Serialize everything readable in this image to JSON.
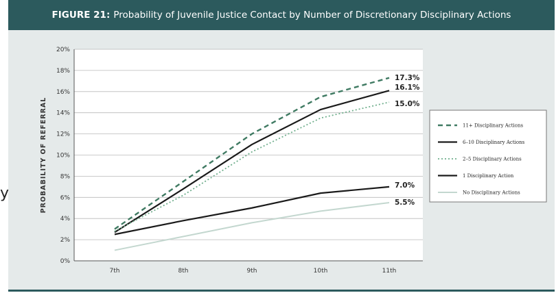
{
  "header": {
    "figure_number": "FIGURE 21:",
    "title": "Probability of Juvenile Justice Contact by Number of Discretionary Disciplinary Actions"
  },
  "stray_text": "y",
  "chart_data": {
    "type": "line",
    "title": "FIGURE 21: Probability of Juvenile Justice Contact by Number of Discretionary Disciplinary Actions",
    "xlabel": "",
    "ylabel": "PROBABILITY OF REFERRAL",
    "categories": [
      "7th",
      "8th",
      "9th",
      "10th",
      "11th"
    ],
    "ylim": [
      0,
      20
    ],
    "yticks": [
      "0%",
      "2%",
      "4%",
      "6%",
      "8%",
      "10%",
      "12%",
      "14%",
      "16%",
      "18%",
      "20%"
    ],
    "grid": true,
    "legend": "right",
    "series": [
      {
        "name": "11+ Disciplinary Actions",
        "values": [
          3.0,
          7.5,
          12.0,
          15.5,
          17.3
        ],
        "color": "#3f7a62",
        "dash": "7,5",
        "width": 2.4,
        "end_label": "17.3%"
      },
      {
        "name": "6–10 Disciplinary Actions",
        "values": [
          2.7,
          6.8,
          11.0,
          14.3,
          16.1
        ],
        "color": "#1a1a1a",
        "dash": "",
        "width": 2.2,
        "end_label": "16.1%"
      },
      {
        "name": "2–5 Disciplinary Actions",
        "values": [
          2.8,
          6.2,
          10.3,
          13.5,
          15.0
        ],
        "color": "#6fae8c",
        "dash": "2,3",
        "width": 1.8,
        "end_label": "15.0%"
      },
      {
        "name": "1 Disciplinary Action",
        "values": [
          2.5,
          3.8,
          5.0,
          6.4,
          7.0
        ],
        "color": "#1a1a1a",
        "dash": "",
        "width": 2.2,
        "end_label": "7.0%"
      },
      {
        "name": "No Disciplinary Actions",
        "values": [
          1.0,
          2.3,
          3.6,
          4.7,
          5.5
        ],
        "color": "#c3d7cf",
        "dash": "",
        "width": 2.0,
        "end_label": "5.5%"
      }
    ],
    "colors": {
      "header_bg": "#2c5a5d",
      "panel_bg": "#e5eaea",
      "plot_bg": "#ffffff",
      "grid": "#b9b9b9"
    }
  }
}
